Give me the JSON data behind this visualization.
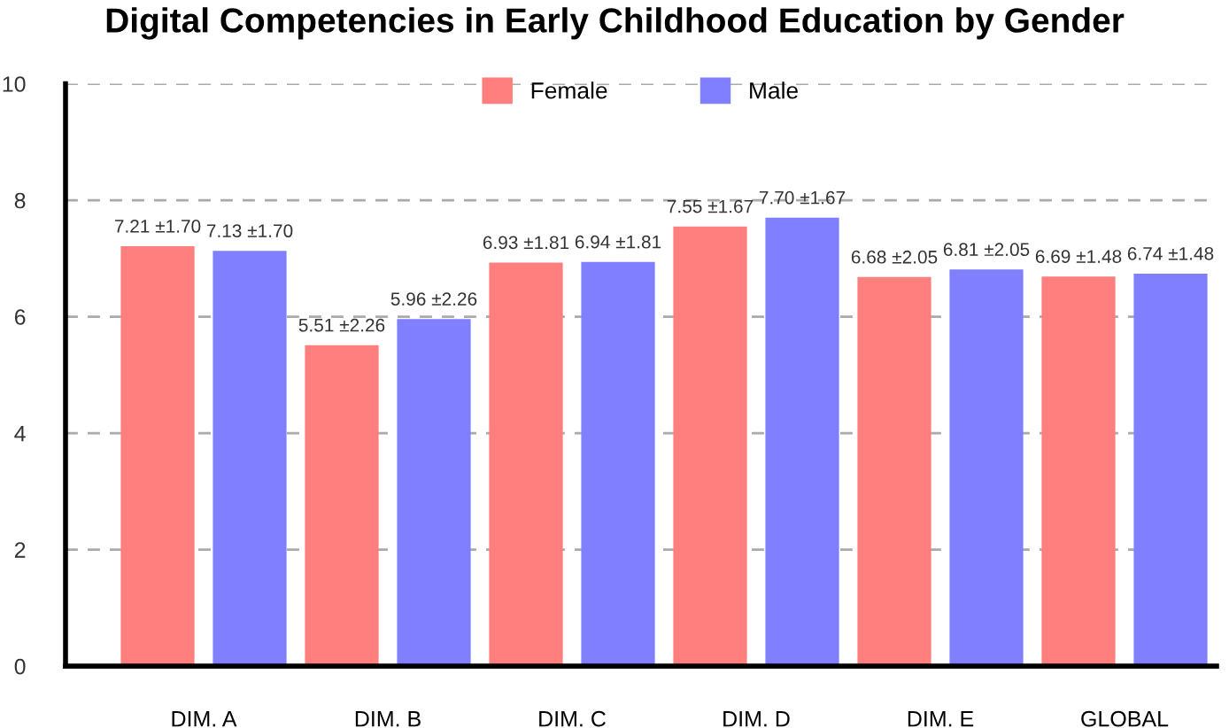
{
  "chart_data": {
    "type": "bar",
    "title": "Digital Competencies in Early Childhood Education by Gender",
    "categories": [
      "DIM. A",
      "DIM. B",
      "DIM. C",
      "DIM. D",
      "DIM. E",
      "GLOBAL"
    ],
    "series": [
      {
        "name": "Female",
        "color": "#ff7f7f",
        "values": [
          7.21,
          5.51,
          6.93,
          7.55,
          6.68,
          6.69
        ],
        "value_labels": [
          "7.21 ±1.70",
          "5.51 ±2.26",
          "6.93 ±1.81",
          "7.55 ±1.67",
          "6.68 ±2.05",
          "6.69 ±1.48"
        ]
      },
      {
        "name": "Male",
        "color": "#7f7fff",
        "values": [
          7.13,
          5.96,
          6.94,
          7.7,
          6.81,
          6.74
        ],
        "value_labels": [
          "7.13 ±1.70",
          "5.96 ±2.26",
          "6.94 ±1.81",
          "7.70 ±1.67",
          "6.81 ±2.05",
          "6.74 ±1.48"
        ]
      }
    ],
    "ylim": [
      0,
      10
    ],
    "yticks": [
      0,
      2,
      4,
      6,
      8,
      10
    ],
    "grid": "y",
    "legend": "top"
  }
}
